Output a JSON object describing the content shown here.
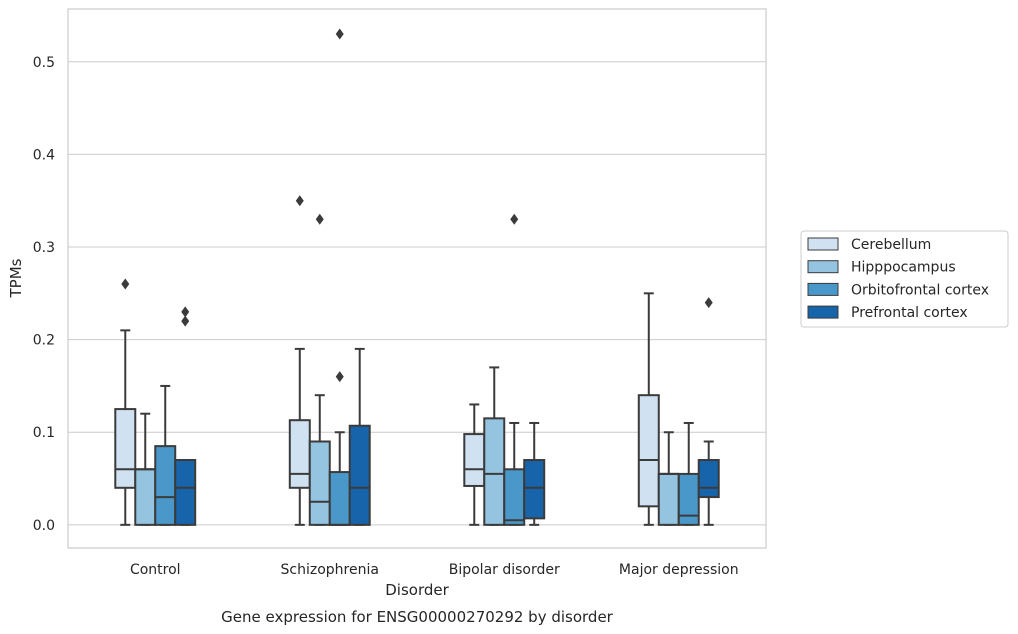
{
  "chart_data": {
    "type": "box",
    "title": "",
    "caption": "Gene expression for ENSG00000270292 by disorder",
    "xlabel": "Disorder",
    "ylabel": "TPMs",
    "ylim": [
      -0.025,
      0.557
    ],
    "yticks": [
      "0.0",
      "0.1",
      "0.2",
      "0.3",
      "0.4",
      "0.5"
    ],
    "grid": true,
    "legend_position": "right",
    "categories": [
      "Control",
      "Schizophrenia",
      "Bipolar disorder",
      "Major depression"
    ],
    "series": [
      {
        "name": "Cerebellum",
        "color": "#d0e1f2",
        "boxes": [
          {
            "whislo": 0.0,
            "q1": 0.04,
            "med": 0.06,
            "q3": 0.125,
            "whishi": 0.21,
            "fliers": [
              0.26
            ]
          },
          {
            "whislo": 0.0,
            "q1": 0.04,
            "med": 0.055,
            "q3": 0.113,
            "whishi": 0.19,
            "fliers": [
              0.35
            ]
          },
          {
            "whislo": 0.0,
            "q1": 0.042,
            "med": 0.06,
            "q3": 0.098,
            "whishi": 0.13,
            "fliers": []
          },
          {
            "whislo": 0.0,
            "q1": 0.02,
            "med": 0.07,
            "q3": 0.14,
            "whishi": 0.25,
            "fliers": []
          }
        ]
      },
      {
        "name": "Hipppocampus",
        "color": "#94c4df",
        "boxes": [
          {
            "whislo": 0.0,
            "q1": 0.0,
            "med": 0.06,
            "q3": 0.06,
            "whishi": 0.12,
            "fliers": []
          },
          {
            "whislo": 0.0,
            "q1": 0.0,
            "med": 0.025,
            "q3": 0.09,
            "whishi": 0.14,
            "fliers": [
              0.33
            ]
          },
          {
            "whislo": 0.0,
            "q1": 0.0,
            "med": 0.055,
            "q3": 0.115,
            "whishi": 0.17,
            "fliers": []
          },
          {
            "whislo": 0.0,
            "q1": 0.0,
            "med": 0.055,
            "q3": 0.055,
            "whishi": 0.1,
            "fliers": []
          }
        ]
      },
      {
        "name": "Orbitofrontal cortex",
        "color": "#4a98c9",
        "boxes": [
          {
            "whislo": 0.0,
            "q1": 0.0,
            "med": 0.03,
            "q3": 0.085,
            "whishi": 0.15,
            "fliers": []
          },
          {
            "whislo": 0.0,
            "q1": 0.0,
            "med": 0.0,
            "q3": 0.057,
            "whishi": 0.1,
            "fliers": [
              0.16,
              0.53
            ]
          },
          {
            "whislo": 0.0,
            "q1": 0.0,
            "med": 0.005,
            "q3": 0.06,
            "whishi": 0.11,
            "fliers": [
              0.33
            ]
          },
          {
            "whislo": 0.0,
            "q1": 0.0,
            "med": 0.01,
            "q3": 0.055,
            "whishi": 0.11,
            "fliers": []
          }
        ]
      },
      {
        "name": "Prefrontal cortex",
        "color": "#1764ab",
        "boxes": [
          {
            "whislo": 0.0,
            "q1": 0.0,
            "med": 0.04,
            "q3": 0.07,
            "whishi": 0.07,
            "fliers": [
              0.22,
              0.23
            ]
          },
          {
            "whislo": 0.0,
            "q1": 0.0,
            "med": 0.04,
            "q3": 0.107,
            "whishi": 0.19,
            "fliers": []
          },
          {
            "whislo": 0.0,
            "q1": 0.007,
            "med": 0.04,
            "q3": 0.07,
            "whishi": 0.11,
            "fliers": []
          },
          {
            "whislo": 0.0,
            "q1": 0.03,
            "med": 0.04,
            "q3": 0.07,
            "whishi": 0.09,
            "fliers": [
              0.24
            ]
          }
        ]
      }
    ]
  }
}
